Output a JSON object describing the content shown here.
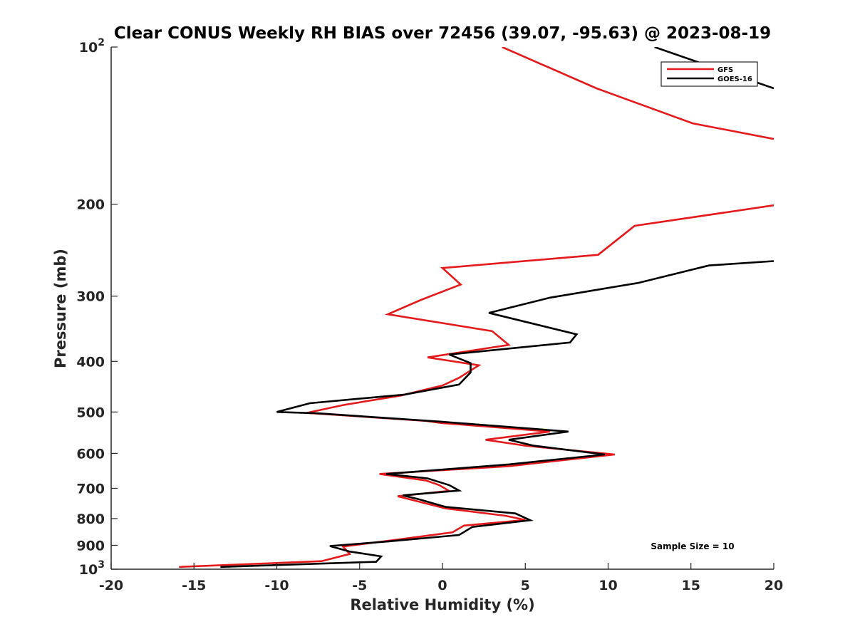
{
  "chart_data": {
    "type": "line",
    "title": "Clear CONUS Weekly RH BIAS over 72456 (39.07, -95.63) @ 2023-08-19",
    "xlabel": "Relative Humidity (%)",
    "ylabel": "Pressure (mb)",
    "xlim": [
      -20,
      20
    ],
    "ylim": [
      100,
      1000
    ],
    "y_scale": "log",
    "y_reversed": true,
    "grid": false,
    "legend_position": "top-right",
    "x_ticks": [
      -20,
      -15,
      -10,
      -5,
      0,
      5,
      10,
      15,
      20
    ],
    "x_tick_labels": [
      "-20",
      "-15",
      "-10",
      "-5",
      "0",
      "5",
      "10",
      "15",
      "20"
    ],
    "y_ticks": [
      100,
      200,
      300,
      400,
      500,
      600,
      700,
      800,
      900,
      1000
    ],
    "y_tick_labels": [
      {
        "base": "10",
        "exp": "2"
      },
      {
        "base": "200",
        "exp": ""
      },
      {
        "base": "300",
        "exp": ""
      },
      {
        "base": "400",
        "exp": ""
      },
      {
        "base": "500",
        "exp": ""
      },
      {
        "base": "600",
        "exp": ""
      },
      {
        "base": "700",
        "exp": ""
      },
      {
        "base": "800",
        "exp": ""
      },
      {
        "base": "900",
        "exp": ""
      },
      {
        "base": "10",
        "exp": "3"
      }
    ],
    "annotation": "Sample Size = 10",
    "series": [
      {
        "name": "GFS",
        "color": "#e41a1c",
        "segments": [
          [
            {
              "x": 3.6,
              "p": 100
            },
            {
              "x": 9.3,
              "p": 120
            },
            {
              "x": 15.1,
              "p": 140
            },
            {
              "x": 20.0,
              "p": 150
            }
          ],
          [
            {
              "x": 20.0,
              "p": 201
            },
            {
              "x": 11.6,
              "p": 220
            },
            {
              "x": 9.4,
              "p": 250
            },
            {
              "x": 0.0,
              "p": 265
            },
            {
              "x": 1.1,
              "p": 285
            },
            {
              "x": -1.3,
              "p": 305
            },
            {
              "x": -3.3,
              "p": 325
            },
            {
              "x": 3.0,
              "p": 350
            },
            {
              "x": 4.0,
              "p": 372
            },
            {
              "x": -0.9,
              "p": 393
            },
            {
              "x": 2.2,
              "p": 407
            },
            {
              "x": 1.0,
              "p": 430
            },
            {
              "x": 0.0,
              "p": 445
            },
            {
              "x": -2.5,
              "p": 465
            },
            {
              "x": -6.0,
              "p": 485
            },
            {
              "x": -8.2,
              "p": 502
            },
            {
              "x": -1.0,
              "p": 520
            },
            {
              "x": 0.0,
              "p": 525
            },
            {
              "x": 6.5,
              "p": 545
            },
            {
              "x": 2.6,
              "p": 565
            },
            {
              "x": 5.0,
              "p": 580
            },
            {
              "x": 10.4,
              "p": 603
            },
            {
              "x": 4.0,
              "p": 635
            },
            {
              "x": -3.8,
              "p": 657
            },
            {
              "x": -1.0,
              "p": 676
            },
            {
              "x": -0.2,
              "p": 690
            },
            {
              "x": 0.4,
              "p": 708
            },
            {
              "x": -2.7,
              "p": 725
            },
            {
              "x": -1.6,
              "p": 740
            },
            {
              "x": 0.2,
              "p": 765
            },
            {
              "x": 3.8,
              "p": 790
            },
            {
              "x": 5.0,
              "p": 805
            },
            {
              "x": 1.3,
              "p": 825
            },
            {
              "x": 0.6,
              "p": 850
            },
            {
              "x": -3.0,
              "p": 880
            },
            {
              "x": -6.0,
              "p": 905
            },
            {
              "x": -5.6,
              "p": 935
            },
            {
              "x": -7.3,
              "p": 965
            },
            {
              "x": -15.9,
              "p": 990
            }
          ]
        ]
      },
      {
        "name": "GOES-16",
        "color": "#000000",
        "segments": [
          [
            {
              "x": 12.8,
              "p": 100
            },
            {
              "x": 20.0,
              "p": 120
            }
          ],
          [
            {
              "x": 20.0,
              "p": 257
            },
            {
              "x": 16.1,
              "p": 262
            },
            {
              "x": 11.8,
              "p": 283
            },
            {
              "x": 6.5,
              "p": 302
            },
            {
              "x": 2.8,
              "p": 323
            },
            {
              "x": 8.1,
              "p": 355
            },
            {
              "x": 7.7,
              "p": 368
            },
            {
              "x": 0.4,
              "p": 388
            },
            {
              "x": 1.7,
              "p": 403
            },
            {
              "x": 1.7,
              "p": 420
            },
            {
              "x": 1.0,
              "p": 443
            },
            {
              "x": -2.3,
              "p": 463
            },
            {
              "x": -8.0,
              "p": 481
            },
            {
              "x": -10.0,
              "p": 500
            },
            {
              "x": -7.5,
              "p": 503
            },
            {
              "x": 0.0,
              "p": 522
            },
            {
              "x": 7.6,
              "p": 545
            },
            {
              "x": 4.0,
              "p": 565
            },
            {
              "x": 5.5,
              "p": 580
            },
            {
              "x": 9.8,
              "p": 603
            },
            {
              "x": 4.0,
              "p": 630
            },
            {
              "x": -3.4,
              "p": 657
            },
            {
              "x": -0.9,
              "p": 670
            },
            {
              "x": 0.4,
              "p": 690
            },
            {
              "x": 1.0,
              "p": 707
            },
            {
              "x": -2.4,
              "p": 722
            },
            {
              "x": -1.4,
              "p": 735
            },
            {
              "x": 0.2,
              "p": 760
            },
            {
              "x": 4.4,
              "p": 782
            },
            {
              "x": 5.3,
              "p": 806
            },
            {
              "x": 1.8,
              "p": 830
            },
            {
              "x": 1.0,
              "p": 860
            },
            {
              "x": -3.3,
              "p": 885
            },
            {
              "x": -6.8,
              "p": 903
            },
            {
              "x": -5.6,
              "p": 925
            },
            {
              "x": -3.7,
              "p": 945
            },
            {
              "x": -4.0,
              "p": 968
            },
            {
              "x": -13.4,
              "p": 990
            }
          ]
        ]
      }
    ]
  }
}
